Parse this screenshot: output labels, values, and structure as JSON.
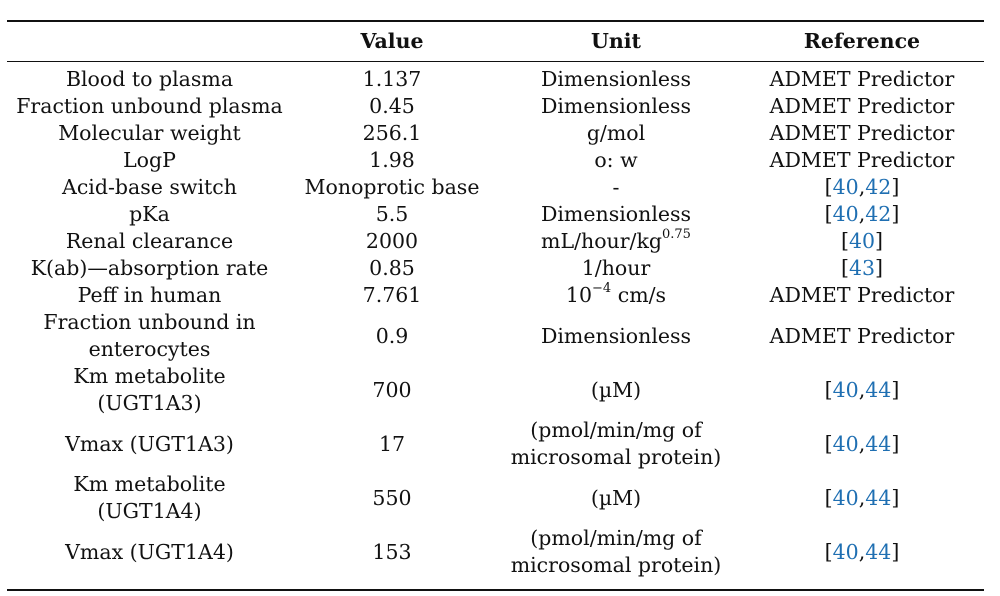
{
  "headers": [
    "",
    "Value",
    "Unit",
    "Reference"
  ],
  "rows": [
    {
      "param": "Blood to plasma",
      "value": "1.137",
      "unit": "Dimensionless",
      "ref": "ADMET Predictor"
    },
    {
      "param": "Fraction unbound plasma",
      "value": "0.45",
      "unit": "Dimensionless",
      "ref": "ADMET Predictor"
    },
    {
      "param": "Molecular weight",
      "value": "256.1",
      "unit": "g/mol",
      "ref": "ADMET Predictor"
    },
    {
      "param": "LogP",
      "value": "1.98",
      "unit": "o: w",
      "ref": "ADMET Predictor"
    },
    {
      "param": "Acid-base switch",
      "value": "Monoprotic base",
      "unit": "-",
      "ref_a": "40",
      "ref_b": "42"
    },
    {
      "param": "pKa",
      "value": "5.5",
      "unit": "Dimensionless",
      "ref_a": "40",
      "ref_b": "42"
    },
    {
      "param": "Renal clearance",
      "value": "2000",
      "unit_base": "mL/hour/kg",
      "unit_sup": "0.75",
      "ref_a": "40"
    },
    {
      "param": "K(ab)—absorption rate",
      "value": "0.85",
      "unit": "1/hour",
      "ref_a": "43"
    },
    {
      "param": "Peff in human",
      "value": "7.761",
      "unit_base": "10",
      "unit_sup": "−4",
      "unit_tail": "cm/s",
      "ref": "ADMET Predictor"
    },
    {
      "param_l1": "Fraction unbound in",
      "param_l2": "enterocytes",
      "value": "0.9",
      "unit": "Dimensionless",
      "ref": "ADMET Predictor"
    },
    {
      "param_l1": "Km metabolite",
      "param_l2": "(UGT1A3)",
      "value": "700",
      "unit": "(µM)",
      "ref_a": "40",
      "ref_b": "44"
    },
    {
      "param": "Vmax (UGT1A3)",
      "value": "17",
      "unit_l1": "(pmol/min/mg of",
      "unit_l2": "microsomal protein)",
      "ref_a": "40",
      "ref_b": "44"
    },
    {
      "param_l1": "Km metabolite",
      "param_l2": "(UGT1A4)",
      "value": "550",
      "unit": "(µM)",
      "ref_a": "40",
      "ref_b": "44"
    },
    {
      "param": "Vmax (UGT1A4)",
      "value": "153",
      "unit_l1": "(pmol/min/mg of",
      "unit_l2": "microsomal protein)",
      "ref_a": "40",
      "ref_b": "44"
    }
  ],
  "colors": {
    "link": "#1f6fb2",
    "text": "#111111",
    "rule": "#111111"
  }
}
